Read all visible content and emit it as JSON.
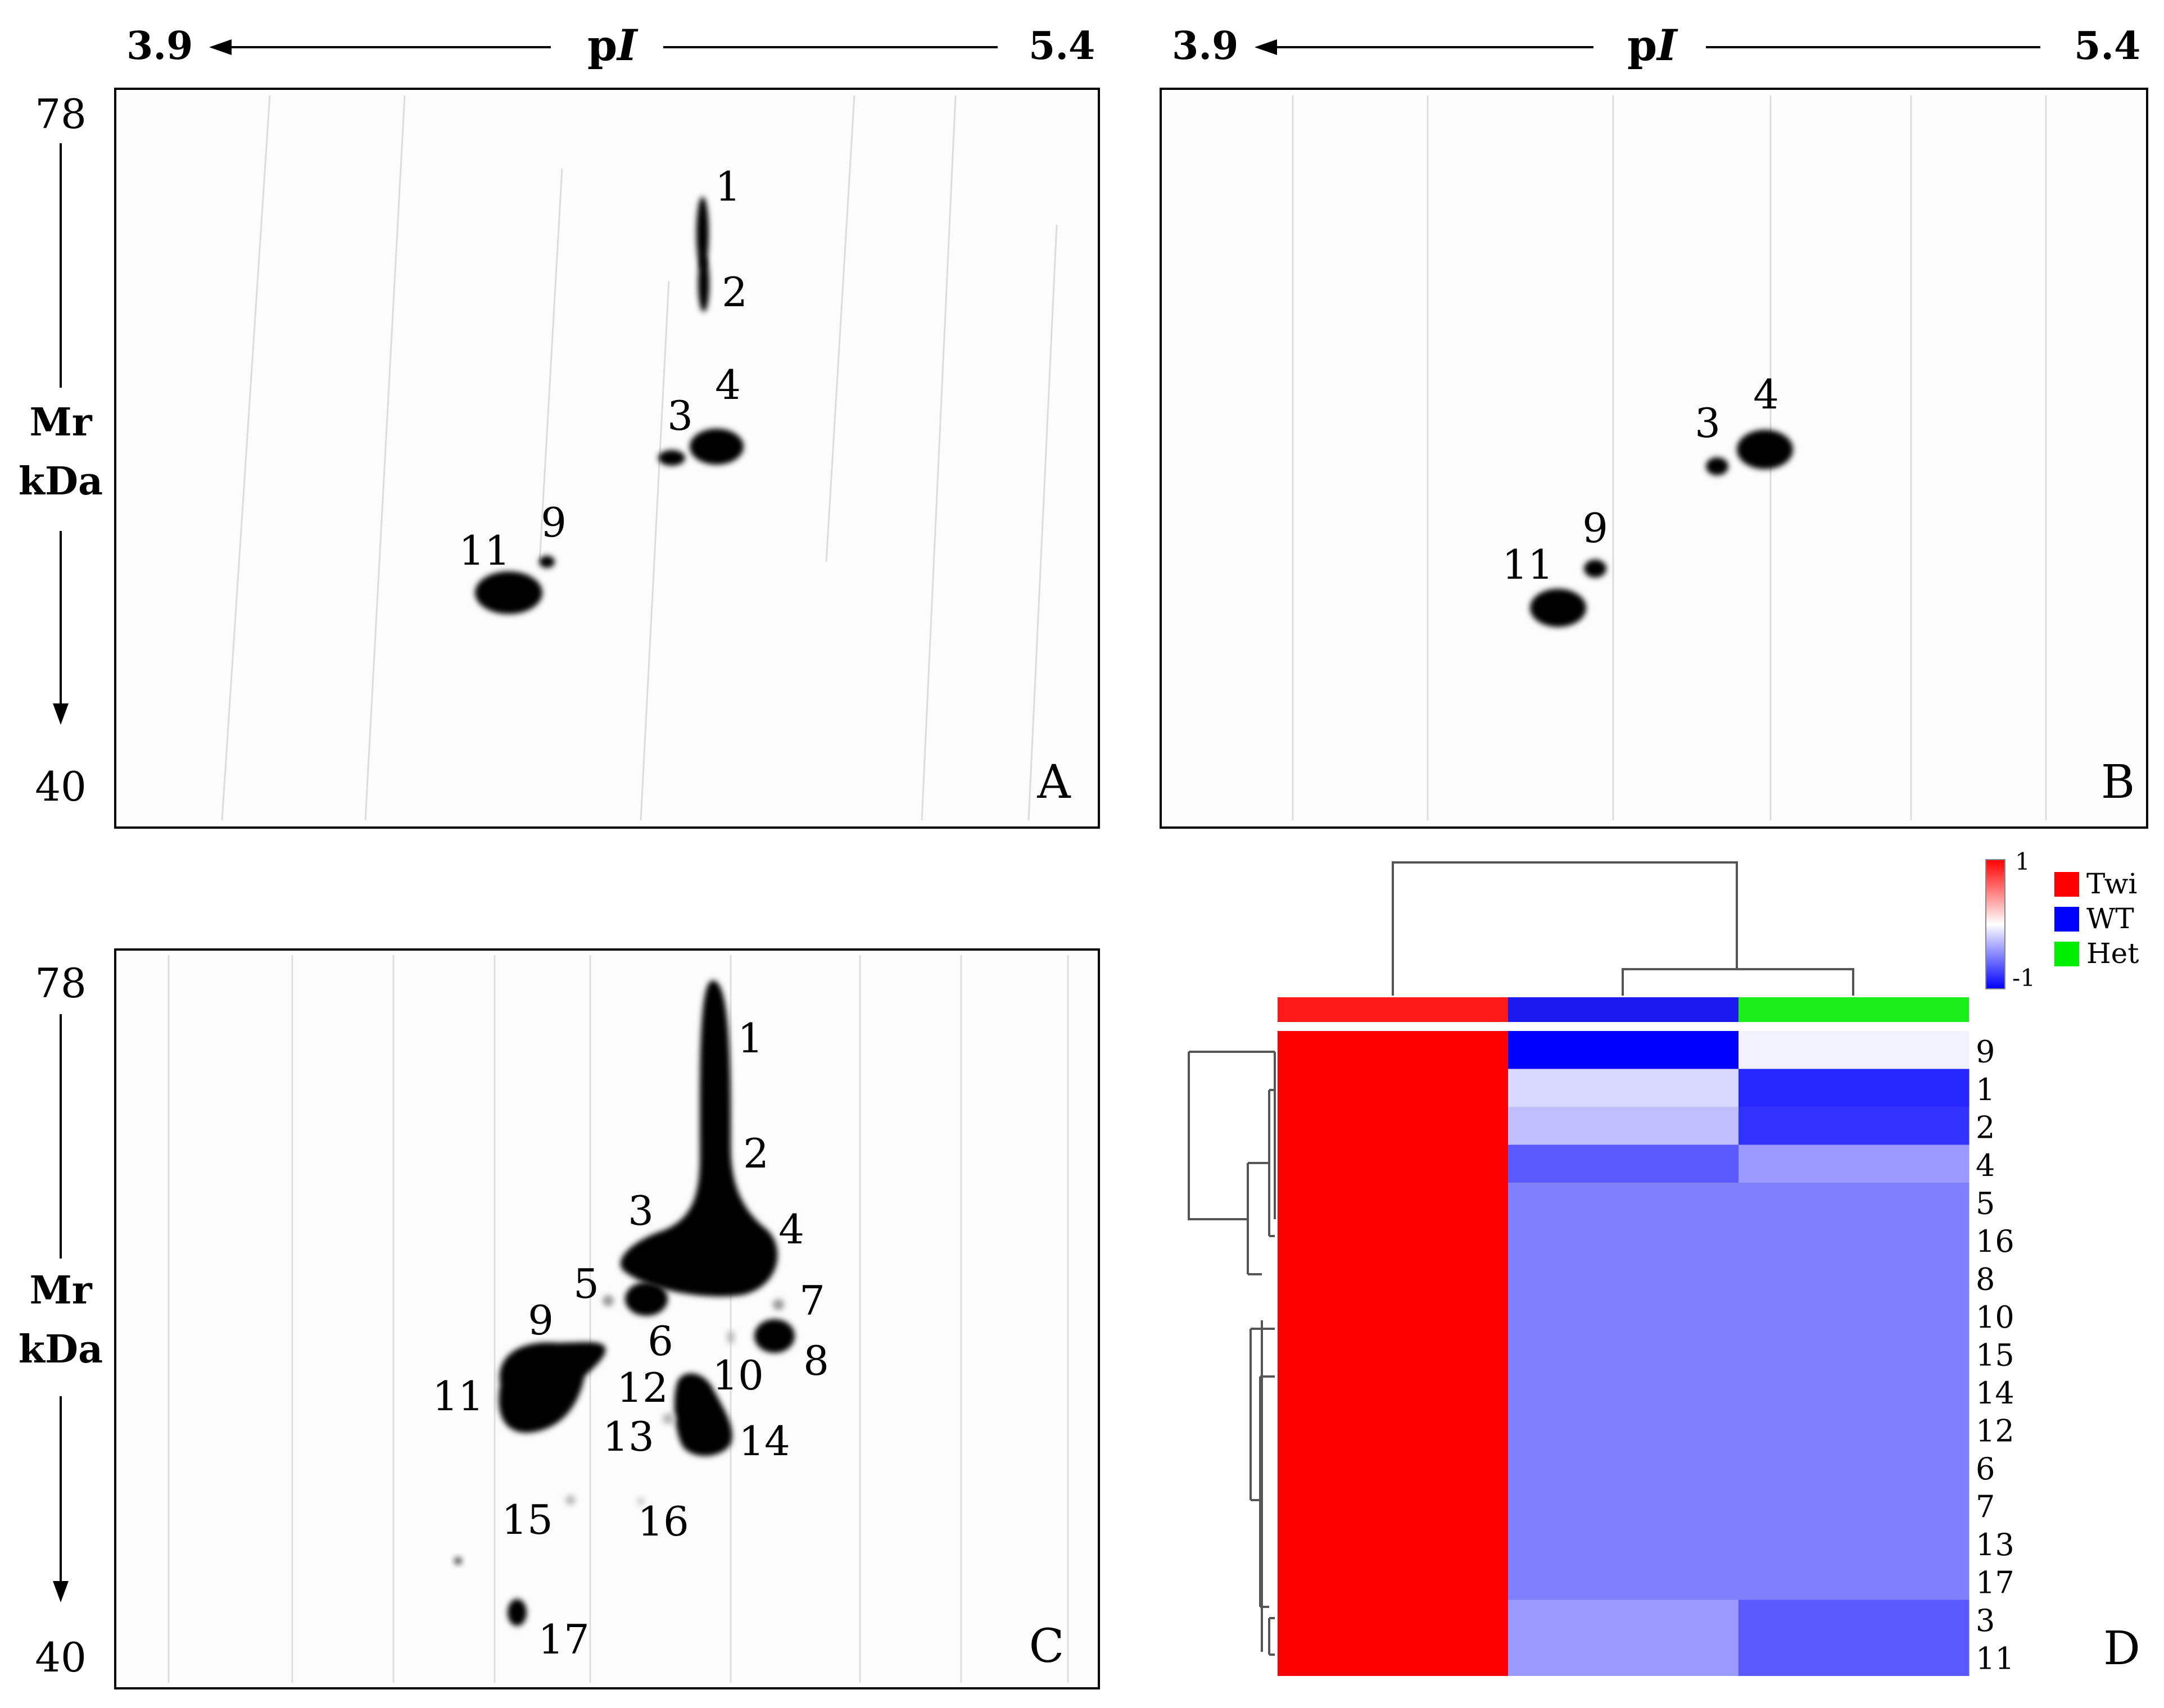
{
  "axes": {
    "pi_left": "3.9",
    "pi_right": "5.4",
    "pi_prefix": "p",
    "pi_italic": "I",
    "mr_top": "78",
    "mr_bottom": "40",
    "mr_label_line1": "Mr",
    "mr_label_line2": "kDa"
  },
  "panels": {
    "A": {
      "letter": "A",
      "spot_labels": [
        "1",
        "2",
        "3",
        "4",
        "9",
        "11"
      ]
    },
    "B": {
      "letter": "B",
      "spot_labels": [
        "3",
        "4",
        "9",
        "11"
      ]
    },
    "C": {
      "letter": "C",
      "spot_labels": [
        "1",
        "2",
        "3",
        "4",
        "5",
        "6",
        "7",
        "8",
        "9",
        "10",
        "11",
        "12",
        "13",
        "14",
        "15",
        "16",
        "17"
      ]
    },
    "D": {
      "letter": "D"
    }
  },
  "heatmap": {
    "groups": [
      {
        "name": "Twi",
        "color": "#ff1a1a"
      },
      {
        "name": "WT",
        "color": "#1a1aee"
      },
      {
        "name": "Het",
        "color": "#1aee1a"
      }
    ],
    "scale": {
      "max_label": "1",
      "min_label": "-1",
      "high_color": "#ff0000",
      "mid_color": "#ffffff",
      "low_color": "#0000ff"
    },
    "rows": [
      "9",
      "1",
      "2",
      "4",
      "5",
      "16",
      "8",
      "10",
      "15",
      "14",
      "12",
      "6",
      "7",
      "13",
      "17",
      "3",
      "11"
    ],
    "values": [
      [
        1,
        -1,
        -0.05
      ],
      [
        1,
        -0.15,
        -0.85
      ],
      [
        1,
        -0.25,
        -0.8
      ],
      [
        1,
        -0.65,
        -0.4
      ],
      [
        1,
        -0.5,
        -0.5
      ],
      [
        1,
        -0.5,
        -0.5
      ],
      [
        1,
        -0.5,
        -0.5
      ],
      [
        1,
        -0.5,
        -0.5
      ],
      [
        1,
        -0.5,
        -0.5
      ],
      [
        1,
        -0.5,
        -0.5
      ],
      [
        1,
        -0.5,
        -0.5
      ],
      [
        1,
        -0.5,
        -0.5
      ],
      [
        1,
        -0.5,
        -0.5
      ],
      [
        1,
        -0.5,
        -0.5
      ],
      [
        1,
        -0.5,
        -0.5
      ],
      [
        1,
        -0.4,
        -0.65
      ],
      [
        1,
        -0.4,
        -0.65
      ]
    ]
  }
}
